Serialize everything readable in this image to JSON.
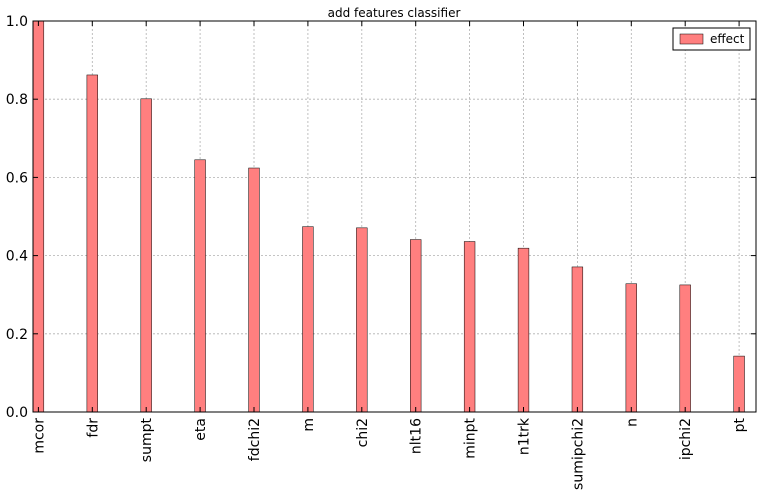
{
  "chart_data": {
    "type": "bar",
    "title": "add features classifier",
    "xlabel": "",
    "ylabel": "",
    "categories": [
      "mcor",
      "fdr",
      "sumpt",
      "eta",
      "fdchi2",
      "m",
      "chi2",
      "nlt16",
      "minpt",
      "n1trk",
      "sumipchi2",
      "n",
      "ipchi2",
      "pt"
    ],
    "series": [
      {
        "name": "effect",
        "color": "#ff7f7f",
        "values": [
          1.0,
          0.862,
          0.801,
          0.645,
          0.624,
          0.474,
          0.471,
          0.441,
          0.436,
          0.419,
          0.371,
          0.328,
          0.325,
          0.143
        ]
      }
    ],
    "ylim": [
      0.0,
      1.0
    ],
    "yticks": [
      "0.0",
      "0.2",
      "0.4",
      "0.6",
      "0.8",
      "1.0"
    ],
    "grid": true,
    "legend_position": "top-right"
  }
}
